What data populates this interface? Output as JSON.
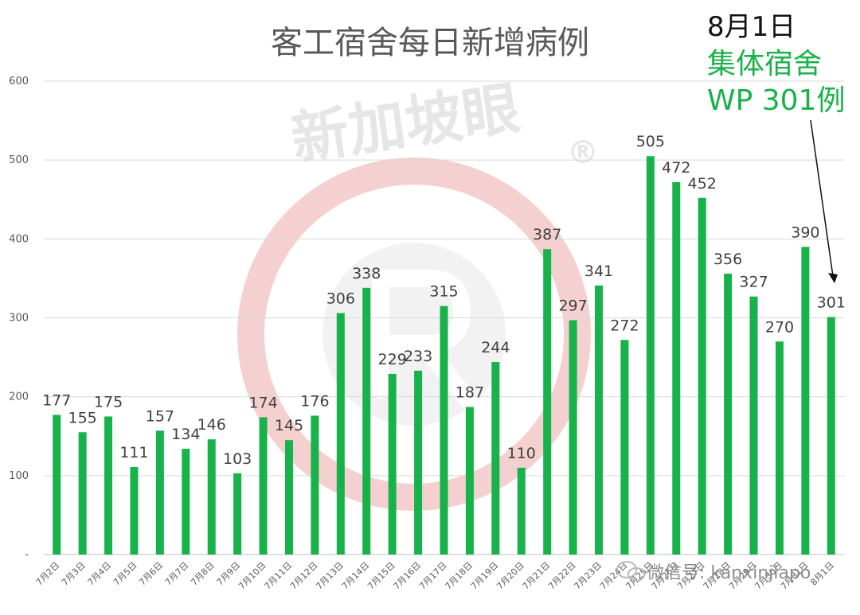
{
  "chart_data": {
    "type": "bar",
    "title": "客工宿舍每日新增病例",
    "xlabel": "",
    "ylabel": "",
    "ylim": [
      0,
      600
    ],
    "yticks": [
      "-",
      "100",
      "200",
      "300",
      "400",
      "500",
      "600"
    ],
    "grid": true,
    "categories": [
      "7月2日",
      "7月3日",
      "7月4日",
      "7月5日",
      "7月6日",
      "7月7日",
      "7月8日",
      "7月9日",
      "7月10日",
      "7月11日",
      "7月12日",
      "7月13日",
      "7月14日",
      "7月15日",
      "7月16日",
      "7月17日",
      "7月18日",
      "7月19日",
      "7月20日",
      "7月21日",
      "7月22日",
      "7月23日",
      "7月24日",
      "7月25日",
      "7月26日",
      "7月27日",
      "7月28日",
      "7月29日",
      "7月30日",
      "7月31日",
      "8月1日"
    ],
    "values": [
      177,
      155,
      175,
      111,
      157,
      134,
      146,
      103,
      174,
      145,
      176,
      306,
      338,
      229,
      233,
      315,
      187,
      244,
      110,
      387,
      297,
      341,
      272,
      505,
      472,
      452,
      356,
      327,
      270,
      390,
      301
    ],
    "bar_color": "#17b24a"
  },
  "callout": {
    "date": "8月1日",
    "line1": "集体宿舍",
    "line2": "WP 301例",
    "color": "#19b24a"
  },
  "watermark": {
    "text": "新加坡眼",
    "mark": "®",
    "color": "#e74c3c"
  },
  "wechat": {
    "text": "微信号: kanxinjiapo",
    "icon": "wechat-icon"
  }
}
